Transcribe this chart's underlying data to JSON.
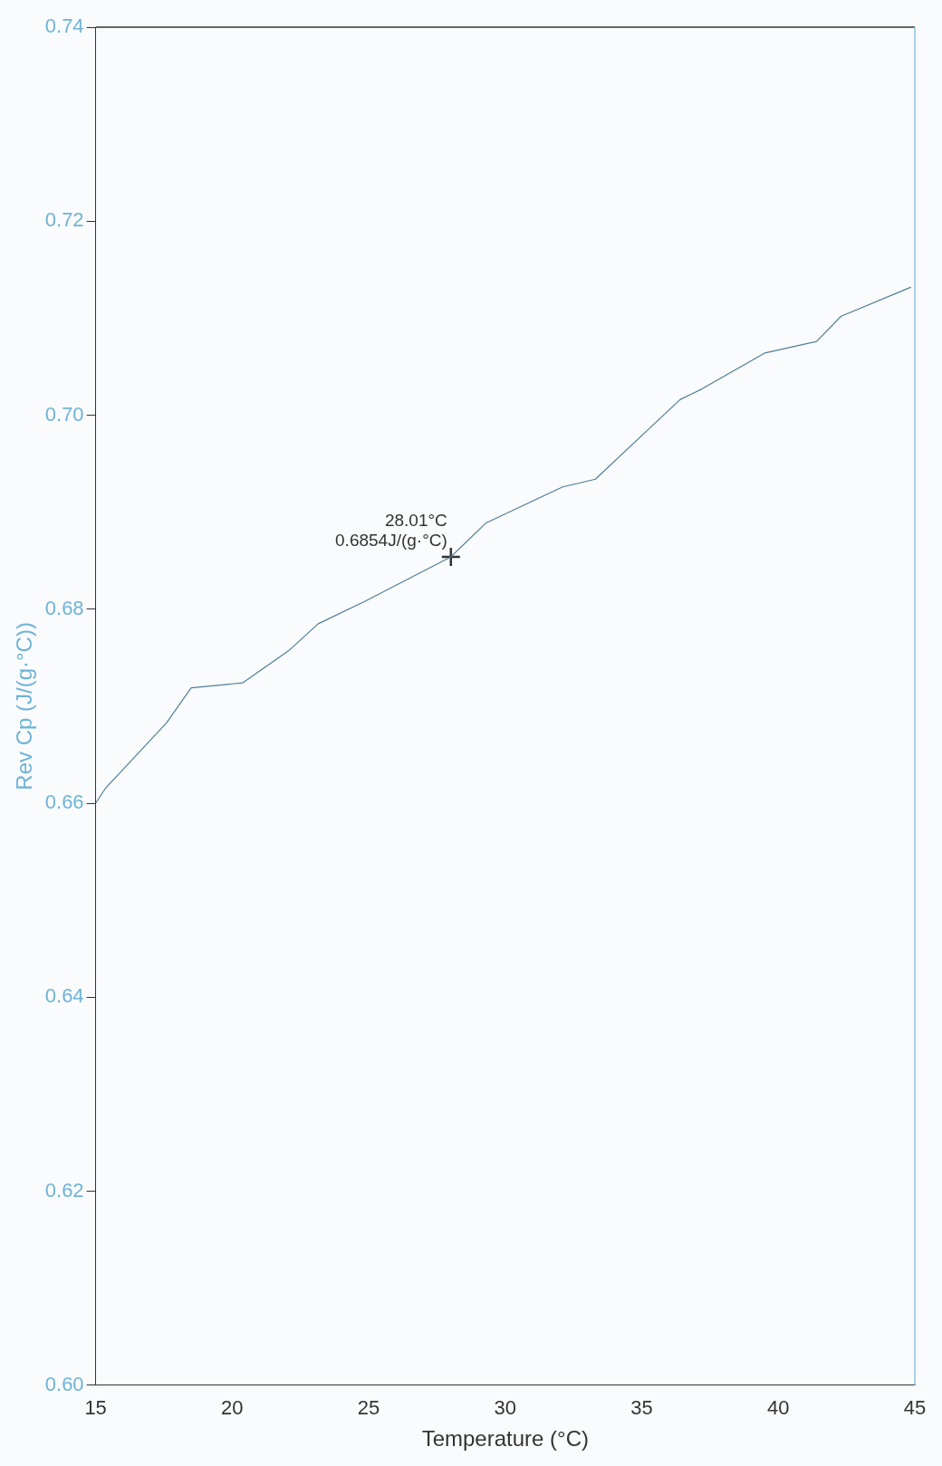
{
  "chart_data": {
    "type": "line",
    "xlabel": "Temperature (°C)",
    "ylabel": "Rev Cp (J/(g·°C))",
    "xlim": [
      15,
      45
    ],
    "xticks": [
      15,
      20,
      25,
      30,
      35,
      40,
      45
    ],
    "ylim": [
      0.6,
      0.74
    ],
    "yticks": [
      {
        "value": 0.6,
        "label": "0.60"
      },
      0.62,
      0.64,
      0.66,
      0.68,
      {
        "value": 0.7,
        "label": "0.70"
      },
      0.72,
      0.74
    ],
    "grid": false,
    "legend": false,
    "series": [
      {
        "color": "#4f7f95",
        "marker": "none",
        "x": [
          15,
          15.35,
          17.6,
          18.5,
          20.38,
          22.06,
          23.15,
          24.85,
          28.01,
          29.3,
          32.1,
          33.3,
          36.4,
          37.2,
          39.5,
          41.4,
          42.3,
          44.86
        ],
        "values": [
          0.66,
          0.6615,
          0.6683,
          0.6719,
          0.6724,
          0.6757,
          0.6785,
          0.6808,
          0.6854,
          0.6889,
          0.6926,
          0.6934,
          0.7016,
          0.7027,
          0.7064,
          0.7076,
          0.7102,
          0.7132
        ]
      },
      {
        "type": "scatter",
        "color": "#333333",
        "marker": "cross",
        "x": [
          28.01
        ],
        "values": [
          0.6854
        ]
      }
    ],
    "annotations": [
      {
        "text": "28.01°C\n0.6854J/(g·°C)",
        "x": 28.01,
        "y": 0.6854
      }
    ]
  }
}
